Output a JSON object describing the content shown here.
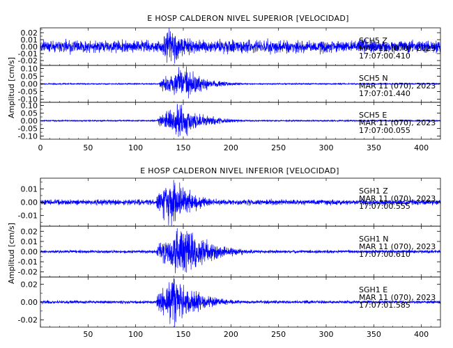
{
  "page": {
    "background": "#ffffff"
  },
  "chart_data": [
    {
      "type": "line",
      "title": "E HOSP CALDERON NIVEL SUPERIOR [VELOCIDAD]",
      "ylabel": "Amplitud [cm/s]",
      "xlabel": "",
      "xlim": [
        0,
        420
      ],
      "x_ticks": [
        0,
        50,
        100,
        150,
        200,
        250,
        300,
        350,
        400
      ],
      "x_tick_labels": [
        "0",
        "50",
        "100",
        "150",
        "200",
        "250",
        "300",
        "350",
        "400"
      ],
      "grid": false,
      "color": "#0000ff",
      "series": [
        {
          "name": "SCH5 Z",
          "annotation": [
            "SCH5   Z",
            "MAR 11 (070), 2023",
            "17:07:00.410"
          ],
          "ylim": [
            -0.027,
            0.027
          ],
          "y_ticks": [
            -0.02,
            -0.01,
            0.0,
            0.01,
            0.02
          ],
          "y_tick_labels": [
            "-0.02",
            "-0.01",
            "0.00",
            "0.01",
            "0.02"
          ],
          "envelope": {
            "noise": 0.0072,
            "onset": 122,
            "peak_time": 138,
            "peak": 0.021,
            "rise": 8,
            "decay": 22,
            "seed": 11
          }
        },
        {
          "name": "SCH5 N",
          "annotation": [
            "SCH5   N",
            "MAR 11 (070), 2023",
            "17:07:01.440"
          ],
          "ylim": [
            -0.12,
            0.12
          ],
          "y_ticks": [
            -0.1,
            -0.05,
            0.0,
            0.05,
            0.1
          ],
          "y_tick_labels": [
            "-0.10",
            "-0.05",
            "0.00",
            "0.05",
            "0.10"
          ],
          "envelope": {
            "noise": 0.0035,
            "onset": 125,
            "peak_time": 150,
            "peak": 0.088,
            "rise": 14,
            "decay": 22,
            "seed": 23
          }
        },
        {
          "name": "SCH5 E",
          "annotation": [
            "SCH5   E",
            "MAR 11 (070), 2023",
            "17:07:00.055"
          ],
          "ylim": [
            -0.12,
            0.12
          ],
          "y_ticks": [
            -0.1,
            -0.05,
            0.0,
            0.05,
            0.1
          ],
          "y_tick_labels": [
            "-0.10",
            "-0.05",
            "0.00",
            "0.05",
            "0.10"
          ],
          "envelope": {
            "noise": 0.004,
            "onset": 123,
            "peak_time": 148,
            "peak": 0.085,
            "rise": 14,
            "decay": 24,
            "seed": 37
          }
        }
      ]
    },
    {
      "type": "line",
      "title": "E HOSP CALDERON NIVEL INFERIOR [VELOCIDAD]",
      "ylabel": "Amplitud [cm/s]",
      "xlabel": "",
      "xlim": [
        0,
        420
      ],
      "x_ticks": [
        0,
        50,
        100,
        150,
        200,
        250,
        300,
        350,
        400
      ],
      "x_tick_labels": [
        "",
        "50",
        "100",
        "150",
        "200",
        "250",
        "300",
        "350",
        "400"
      ],
      "grid": false,
      "color": "#0000ff",
      "series": [
        {
          "name": "SGH1 Z",
          "annotation": [
            "SGH1   Z",
            "MAR 11 (070), 2023",
            "17:07:00.555"
          ],
          "ylim": [
            -0.018,
            0.018
          ],
          "y_ticks": [
            -0.01,
            0.0,
            0.01
          ],
          "y_tick_labels": [
            "-0.01",
            "0.00",
            "0.01"
          ],
          "envelope": {
            "noise": 0.0016,
            "onset": 122,
            "peak_time": 138,
            "peak": 0.016,
            "rise": 7,
            "decay": 20,
            "seed": 51
          }
        },
        {
          "name": "SGH1 N",
          "annotation": [
            "SGH1   N",
            "MAR 11 (070), 2023",
            "17:07:00.610"
          ],
          "ylim": [
            -0.025,
            0.025
          ],
          "y_ticks": [
            -0.02,
            -0.01,
            0.0,
            0.01,
            0.02
          ],
          "y_tick_labels": [
            "-0.02",
            "-0.01",
            "0.00",
            "0.01",
            "0.02"
          ],
          "envelope": {
            "noise": 0.0012,
            "onset": 122,
            "peak_time": 150,
            "peak": 0.02,
            "rise": 12,
            "decay": 28,
            "seed": 67
          }
        },
        {
          "name": "SGH1 E",
          "annotation": [
            "SGH1   E",
            "MAR 11 (070), 2023",
            "17:07:01.585"
          ],
          "ylim": [
            -0.028,
            0.028
          ],
          "y_ticks": [
            -0.02,
            0.0,
            0.02
          ],
          "y_tick_labels": [
            "-0.02",
            "0.00",
            "0.02"
          ],
          "envelope": {
            "noise": 0.0014,
            "onset": 122,
            "peak_time": 138,
            "peak": 0.024,
            "rise": 8,
            "decay": 26,
            "seed": 83
          }
        }
      ]
    }
  ]
}
